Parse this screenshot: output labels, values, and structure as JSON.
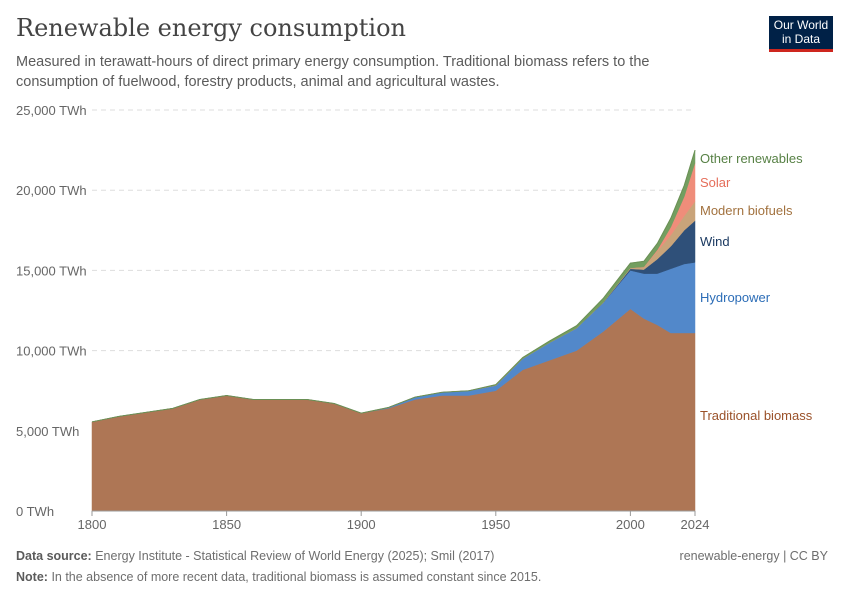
{
  "title": "Renewable energy consumption",
  "subtitle": "Measured in terawatt-hours of direct primary energy consumption. Traditional biomass refers to the consumption of fuelwood, forestry products, animal and agricultural wastes.",
  "logo": "Our World in Data",
  "footer": {
    "source_label": "Data source:",
    "source": "Energy Institute - Statistical Review of World Energy (2025); Smil (2017)",
    "note_label": "Note:",
    "note": "In the absence of more recent data, traditional biomass is assumed constant since 2015.",
    "license": "renewable-energy | CC BY"
  },
  "chart_data": {
    "type": "area",
    "stacked": true,
    "grid": "horizontal dashed",
    "legend": "right, inline labels",
    "ylim": [
      0,
      25000
    ],
    "yticks": [
      {
        "v": 0,
        "label": "0 TWh"
      },
      {
        "v": 5000,
        "label": "5,000 TWh"
      },
      {
        "v": 10000,
        "label": "10,000 TWh"
      },
      {
        "v": 15000,
        "label": "15,000 TWh"
      },
      {
        "v": 20000,
        "label": "20,000 TWh"
      },
      {
        "v": 25000,
        "label": "25,000 TWh"
      }
    ],
    "xlim": [
      1800,
      2024
    ],
    "xticks": [
      {
        "v": 1800,
        "label": "1800"
      },
      {
        "v": 1850,
        "label": "1850"
      },
      {
        "v": 1900,
        "label": "1900"
      },
      {
        "v": 1950,
        "label": "1950"
      },
      {
        "v": 2000,
        "label": "2000"
      },
      {
        "v": 2024,
        "label": "2024"
      }
    ],
    "x": [
      1800,
      1810,
      1820,
      1830,
      1840,
      1850,
      1860,
      1870,
      1880,
      1890,
      1900,
      1910,
      1920,
      1930,
      1940,
      1950,
      1960,
      1970,
      1980,
      1990,
      2000,
      2005,
      2010,
      2015,
      2020,
      2024
    ],
    "series": [
      {
        "name": "Traditional biomass",
        "color": "#ae7655",
        "label_color": "#9a5129",
        "values": [
          5560,
          5900,
          6150,
          6400,
          6950,
          7200,
          6950,
          6950,
          6950,
          6700,
          6100,
          6400,
          6950,
          7200,
          7200,
          7500,
          8800,
          9400,
          10000,
          11200,
          12600,
          12000,
          11600,
          11100,
          11100,
          11100
        ]
      },
      {
        "name": "Hydropower",
        "color": "#5288ca",
        "label_color": "#2c6db7",
        "values": [
          0,
          0,
          0,
          0,
          0,
          0,
          0,
          0,
          0,
          0,
          0,
          50,
          150,
          200,
          300,
          330,
          700,
          1100,
          1400,
          1800,
          2400,
          2800,
          3200,
          4000,
          4300,
          4400
        ]
      },
      {
        "name": "Wind",
        "color": "#2f5079",
        "label_color": "#18375f",
        "values": [
          0,
          0,
          0,
          0,
          0,
          0,
          0,
          0,
          0,
          0,
          0,
          0,
          0,
          0,
          0,
          0,
          0,
          0,
          0,
          5,
          100,
          250,
          900,
          1400,
          2100,
          2600
        ]
      },
      {
        "name": "Modern biofuels",
        "color": "#c9a47a",
        "label_color": "#a2723f",
        "values": [
          0,
          0,
          0,
          0,
          0,
          0,
          0,
          0,
          0,
          0,
          0,
          0,
          0,
          0,
          0,
          0,
          0,
          0,
          0,
          20,
          50,
          150,
          500,
          700,
          900,
          1200
        ]
      },
      {
        "name": "Solar",
        "color": "#ef8d7a",
        "label_color": "#e56e5a",
        "values": [
          0,
          0,
          0,
          0,
          0,
          0,
          0,
          0,
          0,
          0,
          0,
          0,
          0,
          0,
          0,
          0,
          0,
          0,
          0,
          0,
          5,
          20,
          80,
          500,
          1200,
          2400
        ]
      },
      {
        "name": "Other renewables",
        "color": "#739e60",
        "label_color": "#578145",
        "values": [
          0,
          0,
          0,
          0,
          0,
          0,
          0,
          0,
          0,
          0,
          0,
          0,
          0,
          0,
          0,
          50,
          70,
          100,
          150,
          250,
          300,
          350,
          400,
          550,
          700,
          800
        ]
      }
    ]
  }
}
